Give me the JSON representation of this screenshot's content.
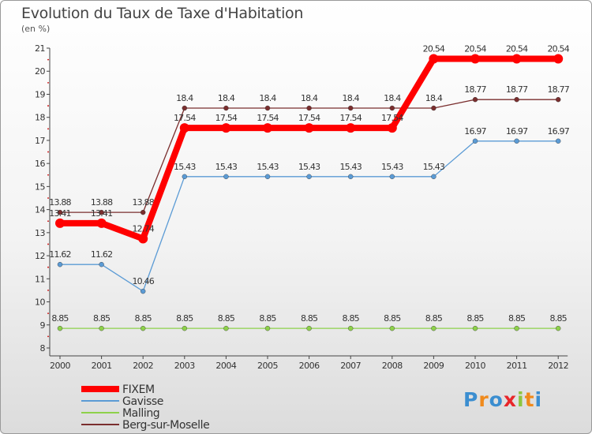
{
  "title": "Evolution du Taux de Taxe d'Habitation",
  "unit": "(en %)",
  "logo_text": "Proxiti",
  "chart_data": {
    "type": "line",
    "title": "Evolution du Taux de Taxe d'Habitation",
    "ylabel": "(en %)",
    "xlabel": "",
    "x": [
      "2000",
      "2001",
      "2002",
      "2003",
      "2004",
      "2005",
      "2006",
      "2007",
      "2008",
      "2009",
      "2010",
      "2011",
      "2012"
    ],
    "ylim": [
      8,
      21
    ],
    "yticks": [
      8,
      9,
      10,
      11,
      12,
      13,
      14,
      15,
      16,
      17,
      18,
      19,
      20,
      21
    ],
    "grid": false,
    "legend": "bottom-left",
    "series": [
      {
        "name": "FIXEM",
        "color": "#ff0000",
        "values": [
          13.41,
          13.41,
          12.74,
          17.54,
          17.54,
          17.54,
          17.54,
          17.54,
          17.54,
          20.54,
          20.54,
          20.54,
          20.54
        ],
        "labels": [
          "13.41",
          "13.41",
          "12.74",
          "17.54",
          "17.54",
          "17.54",
          "17.54",
          "17.54",
          "17.54",
          "20.54",
          "20.54",
          "20.54",
          "20.54"
        ]
      },
      {
        "name": "Gavisse",
        "color": "#5b9bd5",
        "values": [
          11.62,
          11.62,
          10.46,
          15.43,
          15.43,
          15.43,
          15.43,
          15.43,
          15.43,
          15.43,
          16.97,
          16.97,
          16.97
        ],
        "labels": [
          "11.62",
          "11.62",
          "10.46",
          "15.43",
          "15.43",
          "15.43",
          "15.43",
          "15.43",
          "15.43",
          "15.43",
          "16.97",
          "16.97",
          "16.97"
        ]
      },
      {
        "name": "Malling",
        "color": "#8ed14a",
        "values": [
          8.85,
          8.85,
          8.85,
          8.85,
          8.85,
          8.85,
          8.85,
          8.85,
          8.85,
          8.85,
          8.85,
          8.85,
          8.85
        ],
        "labels": [
          "8.85",
          "8.85",
          "8.85",
          "8.85",
          "8.85",
          "8.85",
          "8.85",
          "8.85",
          "8.85",
          "8.85",
          "8.85",
          "8.85",
          "8.85"
        ]
      },
      {
        "name": "Berg-sur-Moselle",
        "color": "#7a2e2e",
        "values": [
          13.88,
          13.88,
          13.88,
          18.4,
          18.4,
          18.4,
          18.4,
          18.4,
          18.4,
          18.4,
          18.77,
          18.77,
          18.77
        ],
        "labels": [
          "13.88",
          "13.88",
          "13.88",
          "18.4",
          "18.4",
          "18.4",
          "18.4",
          "18.4",
          "18.4",
          "18.4",
          "18.77",
          "18.77",
          "18.77"
        ]
      }
    ]
  }
}
